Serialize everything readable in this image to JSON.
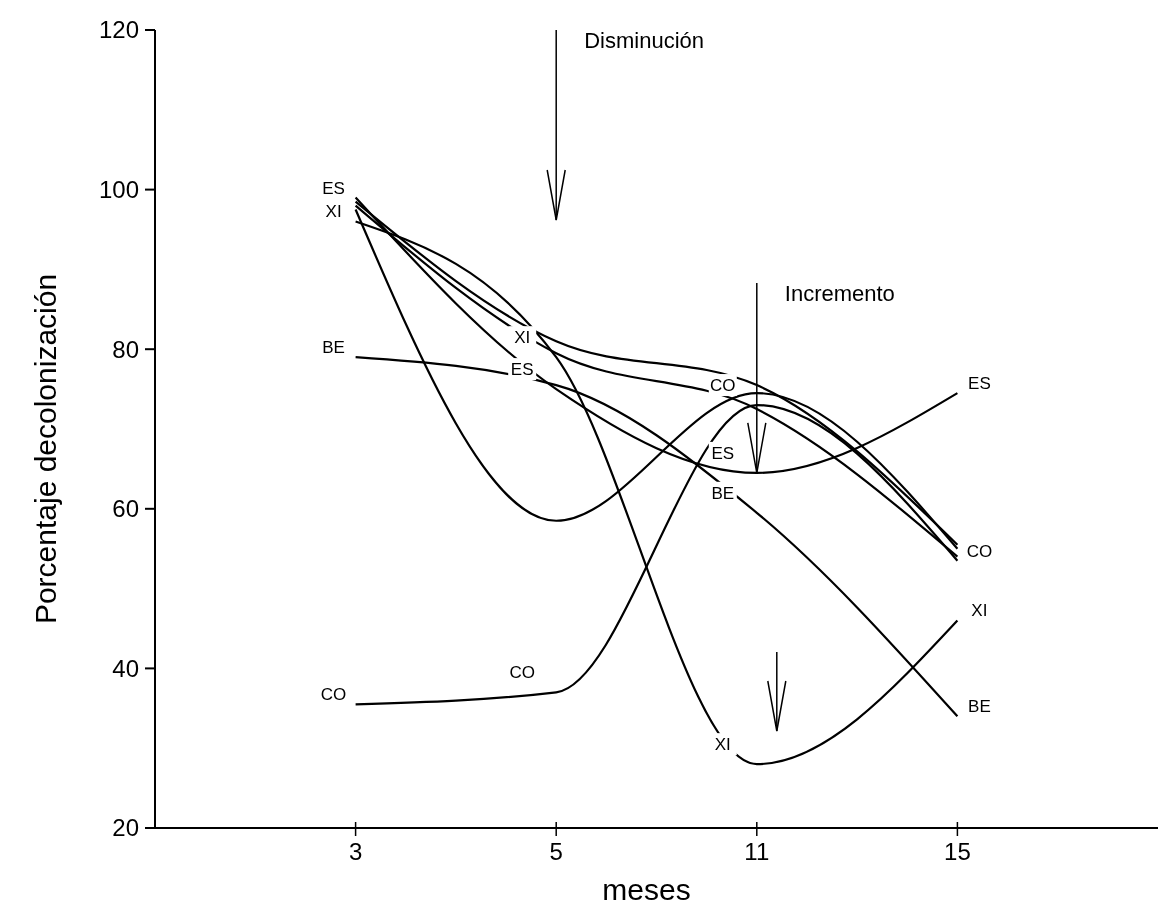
{
  "chart_data": {
    "type": "line",
    "xlabel": "meses",
    "ylabel": "Porcentaje decolonización",
    "categories": [
      "3",
      "5",
      "11",
      "15"
    ],
    "ylim": [
      20,
      120
    ],
    "yticks": [
      20,
      40,
      60,
      80,
      100,
      120
    ],
    "grid": false,
    "legend": false,
    "line_style": "solid",
    "series": [
      {
        "name": "ES",
        "color": "#000000",
        "values": [
          99,
          75,
          64.5,
          74.5
        ]
      },
      {
        "name": "XI",
        "color": "#000000",
        "values": [
          96,
          79,
          28,
          46
        ]
      },
      {
        "name": "BE",
        "color": "#000000",
        "values": [
          79,
          75.5,
          59.5,
          34
        ]
      },
      {
        "name": "CO",
        "color": "#000000",
        "values": [
          35.5,
          37,
          73,
          53.5
        ]
      },
      {
        "color": "#000000",
        "values": [
          98.5,
          81,
          75.5,
          55.5
        ]
      },
      {
        "color": "#000000",
        "values": [
          98,
          79.5,
          72.5,
          54
        ]
      },
      {
        "color": "#000000",
        "values": [
          97.5,
          58.5,
          74.5,
          55
        ]
      }
    ],
    "annotations": [
      "Disminución",
      {
        "text": "Incremento",
        "x": "11",
        "y": 64.5
      }
    ]
  }
}
